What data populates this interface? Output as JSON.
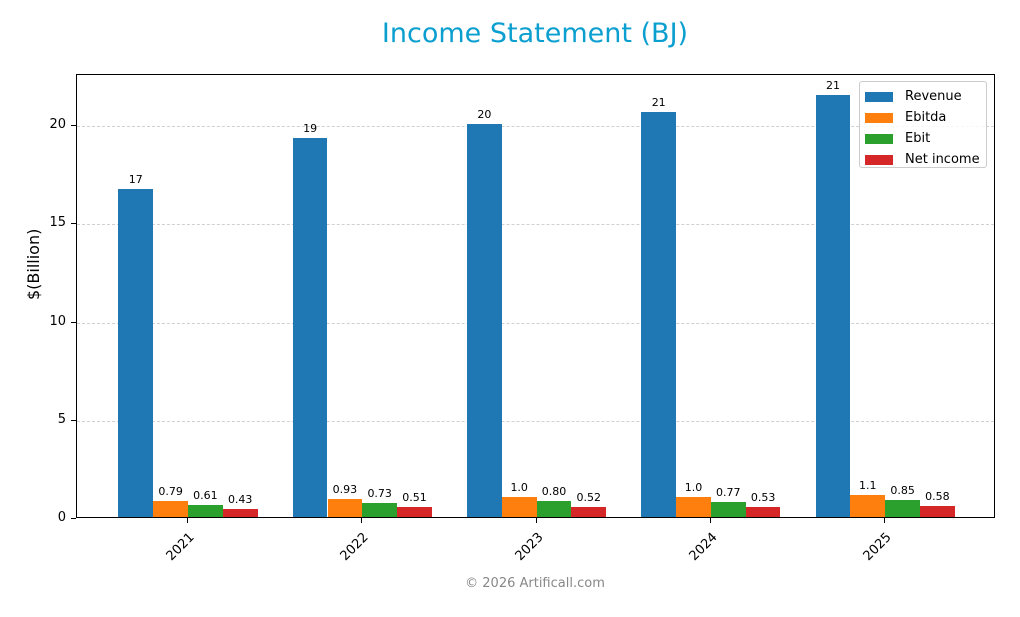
{
  "chart_data": {
    "type": "bar",
    "title": "Income Statement (BJ)",
    "xlabel": "",
    "ylabel": "$(Billion)",
    "categories": [
      "2021",
      "2022",
      "2023",
      "2024",
      "2025"
    ],
    "series": [
      {
        "name": "Revenue",
        "color": "#1f77b4",
        "values": [
          16.7,
          19.3,
          20.0,
          20.6,
          21.5
        ],
        "labels": [
          "17",
          "19",
          "20",
          "21",
          "21"
        ]
      },
      {
        "name": "Ebitda",
        "color": "#ff7f0e",
        "values": [
          0.79,
          0.93,
          1.0,
          1.0,
          1.1
        ],
        "labels": [
          "0.79",
          "0.93",
          "1.0",
          "1.0",
          "1.1"
        ]
      },
      {
        "name": "Ebit",
        "color": "#2ca02c",
        "values": [
          0.61,
          0.73,
          0.8,
          0.77,
          0.85
        ],
        "labels": [
          "0.61",
          "0.73",
          "0.80",
          "0.77",
          "0.85"
        ]
      },
      {
        "name": "Net income",
        "color": "#d62728",
        "values": [
          0.43,
          0.51,
          0.52,
          0.53,
          0.58
        ],
        "labels": [
          "0.43",
          "0.51",
          "0.52",
          "0.53",
          "0.58"
        ]
      }
    ],
    "ylim": [
      0,
      22.6
    ],
    "yticks": [
      0,
      5,
      10,
      15,
      20
    ],
    "grid": true,
    "legend_position": "upper right"
  },
  "header": {
    "title": "Income Statement (BJ)"
  },
  "axes": {
    "ylabel": "$(Billion)",
    "yticks": [
      "0",
      "5",
      "10",
      "15",
      "20"
    ],
    "xticks": [
      "2021",
      "2022",
      "2023",
      "2024",
      "2025"
    ]
  },
  "legend": {
    "items": [
      {
        "label": "Revenue",
        "color": "#1f77b4"
      },
      {
        "label": "Ebitda",
        "color": "#ff7f0e"
      },
      {
        "label": "Ebit",
        "color": "#2ca02c"
      },
      {
        "label": "Net income",
        "color": "#d62728"
      }
    ]
  },
  "footer": {
    "copyright": "© 2026 Artificall.com"
  }
}
